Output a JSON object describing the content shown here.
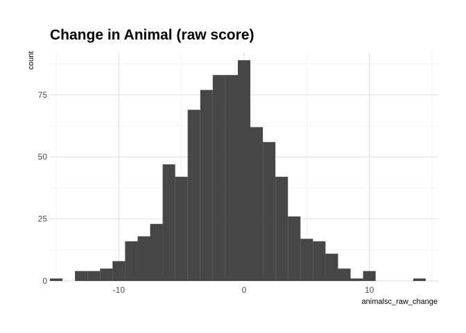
{
  "chart_data": {
    "type": "bar",
    "title": "Change in Animal (raw score)",
    "xlabel": "animalsc_raw_change",
    "ylabel": "count",
    "xlim": [
      -15.5,
      15.5
    ],
    "ylim": [
      0,
      92
    ],
    "x_ticks": [
      -10,
      0,
      10
    ],
    "y_ticks": [
      0,
      25,
      50,
      75
    ],
    "bin_width": 1,
    "bins": [
      {
        "x": -15,
        "count": 1
      },
      {
        "x": -14,
        "count": 0
      },
      {
        "x": -13,
        "count": 4
      },
      {
        "x": -12,
        "count": 4
      },
      {
        "x": -11,
        "count": 5
      },
      {
        "x": -10,
        "count": 8
      },
      {
        "x": -9,
        "count": 16
      },
      {
        "x": -8,
        "count": 18
      },
      {
        "x": -7,
        "count": 23
      },
      {
        "x": -6,
        "count": 47
      },
      {
        "x": -5,
        "count": 42
      },
      {
        "x": -4,
        "count": 69
      },
      {
        "x": -3,
        "count": 77
      },
      {
        "x": -2,
        "count": 83
      },
      {
        "x": -1,
        "count": 83
      },
      {
        "x": 0,
        "count": 89
      },
      {
        "x": 1,
        "count": 62
      },
      {
        "x": 2,
        "count": 56
      },
      {
        "x": 3,
        "count": 42
      },
      {
        "x": 4,
        "count": 26
      },
      {
        "x": 5,
        "count": 17
      },
      {
        "x": 6,
        "count": 16
      },
      {
        "x": 7,
        "count": 11
      },
      {
        "x": 8,
        "count": 5
      },
      {
        "x": 9,
        "count": 1
      },
      {
        "x": 10,
        "count": 4
      },
      {
        "x": 11,
        "count": 0
      },
      {
        "x": 12,
        "count": 0
      },
      {
        "x": 13,
        "count": 0
      },
      {
        "x": 14,
        "count": 1
      }
    ],
    "bar_color": "#464646",
    "grid": true,
    "legend": "none"
  }
}
